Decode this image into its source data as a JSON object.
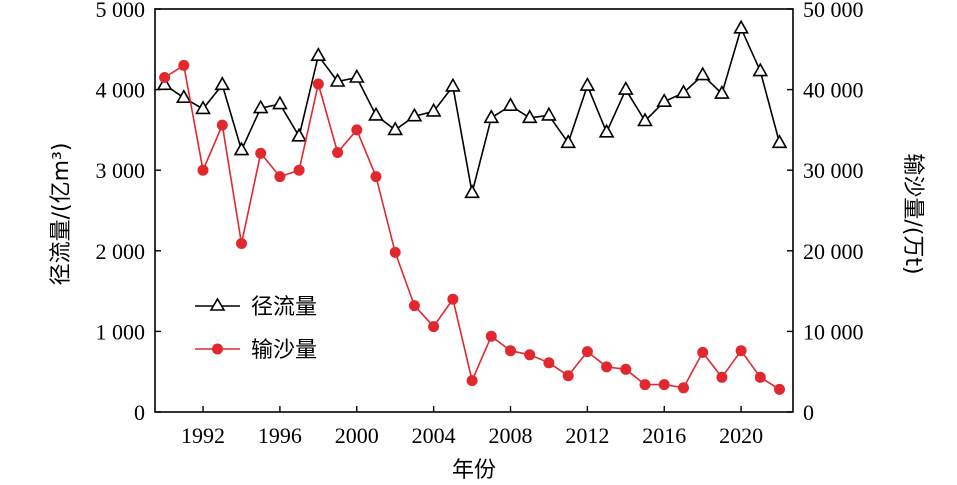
{
  "chart_data": {
    "type": "line",
    "xlabel": "年份",
    "ylabel_left": "径流量/(亿m³)",
    "ylabel_right": "输沙量/(万t)",
    "x": [
      1990,
      1991,
      1992,
      1993,
      1994,
      1995,
      1996,
      1997,
      1998,
      1999,
      2000,
      2001,
      2002,
      2003,
      2004,
      2005,
      2006,
      2007,
      2008,
      2009,
      2010,
      2011,
      2012,
      2013,
      2014,
      2015,
      2016,
      2017,
      2018,
      2019,
      2020,
      2021,
      2022
    ],
    "x_ticks": [
      1992,
      1996,
      2000,
      2004,
      2008,
      2012,
      2016,
      2020
    ],
    "x_tick_labels": [
      "1992",
      "1996",
      "2000",
      "2004",
      "2008",
      "2012",
      "2016",
      "2020"
    ],
    "xlim": [
      1989.5,
      2022.7
    ],
    "y_left": {
      "lim": [
        0,
        5000
      ],
      "ticks": [
        0,
        1000,
        2000,
        3000,
        4000,
        5000
      ],
      "tick_labels": [
        "0",
        "1 000",
        "2 000",
        "3 000",
        "4 000",
        "5 000"
      ]
    },
    "y_right": {
      "lim": [
        0,
        50000
      ],
      "ticks": [
        0,
        10000,
        20000,
        30000,
        40000,
        50000
      ],
      "tick_labels": [
        "0",
        "10 000",
        "20 000",
        "30 000",
        "40 000",
        "50 000"
      ]
    },
    "series": [
      {
        "name": "径流量",
        "axis": "left",
        "color": "#000000",
        "marker": "triangle-open",
        "values": [
          4060,
          3900,
          3760,
          4060,
          3250,
          3770,
          3820,
          3420,
          4420,
          4100,
          4150,
          3680,
          3500,
          3670,
          3730,
          4040,
          2720,
          3650,
          3800,
          3650,
          3680,
          3340,
          4050,
          3470,
          4000,
          3610,
          3850,
          3960,
          4180,
          3950,
          4760,
          4230,
          3340
        ]
      },
      {
        "name": "输沙量",
        "axis": "right",
        "color": "#e0282e",
        "marker": "circle-filled",
        "values": [
          41500,
          43000,
          30000,
          35600,
          20900,
          32100,
          29200,
          30000,
          40700,
          32200,
          35000,
          29200,
          19800,
          13200,
          10600,
          14000,
          3900,
          9400,
          7600,
          7100,
          6100,
          4500,
          7500,
          5600,
          5300,
          3400,
          3400,
          3000,
          7400,
          4300,
          7600,
          4300,
          2800
        ]
      }
    ],
    "legend": {
      "position": "center-left",
      "entries": [
        "径流量",
        "输沙量"
      ]
    }
  }
}
